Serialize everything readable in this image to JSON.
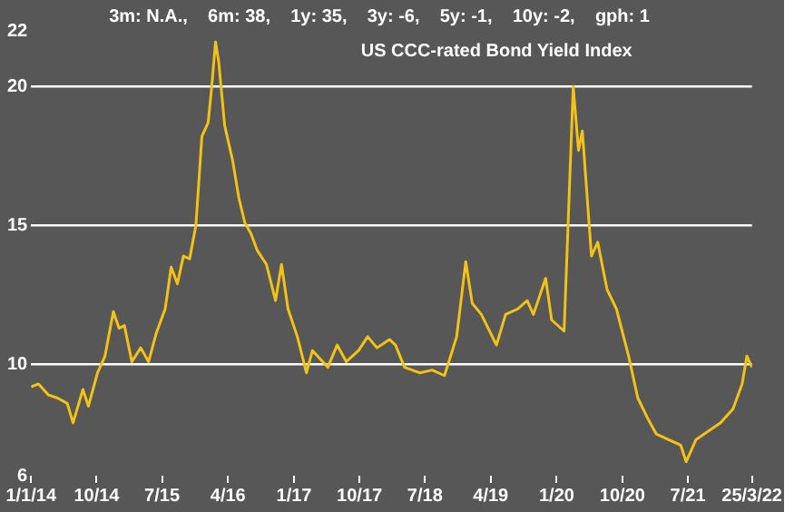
{
  "chart_data": {
    "type": "line",
    "title": "3m: N.A.,    6m: 38,    1y: 35,    3y: -6,    5y: -1,    10y: -2,    gph: 1",
    "subtitle": "US CCC-rated Bond Yield Index",
    "x": [
      "2014-01-01",
      "2014-02-01",
      "2014-03-15",
      "2014-04-20",
      "2014-06-01",
      "2014-06-25",
      "2014-08-05",
      "2014-08-28",
      "2014-10-05",
      "2014-11-05",
      "2014-12-10",
      "2015-01-03",
      "2015-01-25",
      "2015-02-25",
      "2015-04-03",
      "2015-05-06",
      "2015-06-06",
      "2015-07-14",
      "2015-08-08",
      "2015-09-03",
      "2015-09-28",
      "2015-10-24",
      "2015-11-19",
      "2015-12-14",
      "2016-01-09",
      "2016-01-22",
      "2016-02-09",
      "2016-02-22",
      "2016-03-18",
      "2016-04-21",
      "2016-05-16",
      "2016-06-10",
      "2016-07-06",
      "2016-08-01",
      "2016-09-08",
      "2016-10-16",
      "2016-11-10",
      "2016-12-07",
      "2017-01-15",
      "2017-02-22",
      "2017-03-19",
      "2017-05-22",
      "2017-06-30",
      "2017-08-07",
      "2017-09-27",
      "2017-11-04",
      "2017-12-13",
      "2018-02-03",
      "2018-02-28",
      "2018-04-07",
      "2018-06-09",
      "2018-07-31",
      "2018-09-20",
      "2018-10-16",
      "2018-11-10",
      "2018-12-18",
      "2019-01-14",
      "2019-02-21",
      "2019-04-25",
      "2019-06-02",
      "2019-07-23",
      "2019-08-31",
      "2019-09-26",
      "2019-11-16",
      "2019-12-11",
      "2020-02-01",
      "2020-03-10",
      "2020-04-01",
      "2020-04-17",
      "2020-05-25",
      "2020-06-20",
      "2020-07-29",
      "2020-09-06",
      "2020-10-27",
      "2020-12-04",
      "2021-01-12",
      "2021-02-19",
      "2021-04-10",
      "2021-06-01",
      "2021-06-24",
      "2021-08-04",
      "2021-09-24",
      "2021-11-14",
      "2022-01-05",
      "2022-02-12",
      "2022-03-04",
      "2022-03-25"
    ],
    "values": [
      9.2,
      9.3,
      8.9,
      8.8,
      8.6,
      7.9,
      9.1,
      8.5,
      9.7,
      10.3,
      11.9,
      11.3,
      11.4,
      10.1,
      10.6,
      10.1,
      11.1,
      12.0,
      13.5,
      12.9,
      13.9,
      13.8,
      15.0,
      18.2,
      18.7,
      19.8,
      21.6,
      20.9,
      18.6,
      17.3,
      16.0,
      15.1,
      14.7,
      14.1,
      13.6,
      12.3,
      13.6,
      12.0,
      11.0,
      9.7,
      10.5,
      9.9,
      10.7,
      10.1,
      10.5,
      11.0,
      10.6,
      10.9,
      10.7,
      9.9,
      9.7,
      9.8,
      9.6,
      10.3,
      11.0,
      13.7,
      12.2,
      11.8,
      10.7,
      11.8,
      12.0,
      12.3,
      11.8,
      13.1,
      11.6,
      11.2,
      20.0,
      17.7,
      18.4,
      13.9,
      14.4,
      12.7,
      12.0,
      10.3,
      8.8,
      8.1,
      7.5,
      7.3,
      7.1,
      6.5,
      7.3,
      7.6,
      7.9,
      8.4,
      9.3,
      10.3,
      9.9
    ],
    "color": "#f2c316",
    "ylim": [
      6,
      22
    ],
    "yticks": [
      6,
      10,
      15,
      20,
      22
    ],
    "grid": "y",
    "legend": false,
    "marker": "none",
    "line_style": "solid",
    "xlim": [
      "2014-01-01",
      "2022-03-25"
    ],
    "xticks": [
      {
        "value": "2014-01-01",
        "label": "1/1/14"
      },
      {
        "value": "2014-10-01",
        "label": "10/14"
      },
      {
        "value": "2015-07-01",
        "label": "7/15"
      },
      {
        "value": "2016-04-01",
        "label": "4/16"
      },
      {
        "value": "2017-01-01",
        "label": "1/17"
      },
      {
        "value": "2017-10-01",
        "label": "10/17"
      },
      {
        "value": "2018-07-01",
        "label": "7/18"
      },
      {
        "value": "2019-04-01",
        "label": "4/19"
      },
      {
        "value": "2020-01-01",
        "label": "1/20"
      },
      {
        "value": "2020-10-01",
        "label": "10/20"
      },
      {
        "value": "2021-07-01",
        "label": "7/21"
      },
      {
        "value": "2022-03-25",
        "label": "25/3/22"
      }
    ]
  }
}
